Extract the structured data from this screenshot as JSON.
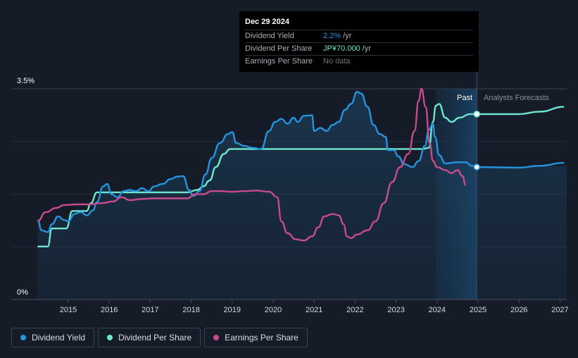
{
  "tooltip": {
    "date": "Dec 29 2024",
    "rows": [
      {
        "label": "Dividend Yield",
        "value": "2.2%",
        "unit": " /yr"
      },
      {
        "label": "Dividend Per Share",
        "value": "JP¥70.000",
        "unit": " /yr"
      },
      {
        "label": "Earnings Per Share",
        "value": "No data",
        "unit": ""
      }
    ]
  },
  "labels": {
    "past": "Past",
    "forecast": "Analysts Forecasts"
  },
  "legend": [
    {
      "label": "Dividend Yield",
      "color": "#2394df"
    },
    {
      "label": "Dividend Per Share",
      "color": "#6ee7cf"
    },
    {
      "label": "Earnings Per Share",
      "color": "#c84b8e"
    }
  ],
  "chart_data": {
    "type": "line",
    "title": "",
    "xlabel": "",
    "ylabel": "",
    "ylim": [
      0,
      3.5
    ],
    "xlim": [
      2014.3,
      2027.05
    ],
    "y_tick_labels": [
      {
        "v": 3.5,
        "label": "3.5%"
      },
      {
        "v": 0,
        "label": "0%"
      }
    ],
    "x_ticks": [
      2015,
      2016,
      2017,
      2018,
      2019,
      2020,
      2021,
      2022,
      2023,
      2024,
      2025,
      2026,
      2027
    ],
    "past_end": 2024.97,
    "forecast_shade_start": 2023.97,
    "series": [
      {
        "name": "Dividend Yield",
        "color": "#2394df",
        "points": [
          [
            2014.25,
            1.32
          ],
          [
            2014.35,
            1.15
          ],
          [
            2014.5,
            1.12
          ],
          [
            2014.6,
            1.25
          ],
          [
            2014.75,
            1.38
          ],
          [
            2014.9,
            1.32
          ],
          [
            2015.0,
            1.3
          ],
          [
            2015.15,
            1.42
          ],
          [
            2015.3,
            1.45
          ],
          [
            2015.45,
            1.4
          ],
          [
            2015.6,
            1.48
          ],
          [
            2015.7,
            1.62
          ],
          [
            2015.85,
            1.88
          ],
          [
            2015.95,
            1.92
          ],
          [
            2016.05,
            1.75
          ],
          [
            2016.2,
            1.7
          ],
          [
            2016.35,
            1.8
          ],
          [
            2016.5,
            1.82
          ],
          [
            2016.65,
            1.8
          ],
          [
            2016.8,
            1.85
          ],
          [
            2016.95,
            1.8
          ],
          [
            2017.1,
            1.88
          ],
          [
            2017.3,
            1.92
          ],
          [
            2017.5,
            2.0
          ],
          [
            2017.65,
            2.04
          ],
          [
            2017.8,
            2.05
          ],
          [
            2017.95,
            1.82
          ],
          [
            2018.05,
            1.72
          ],
          [
            2018.2,
            1.8
          ],
          [
            2018.35,
            2.08
          ],
          [
            2018.5,
            2.35
          ],
          [
            2018.7,
            2.6
          ],
          [
            2018.9,
            2.75
          ],
          [
            2019.0,
            2.78
          ],
          [
            2019.1,
            2.6
          ],
          [
            2019.3,
            2.55
          ],
          [
            2019.5,
            2.52
          ],
          [
            2019.7,
            2.5
          ],
          [
            2019.9,
            2.8
          ],
          [
            2020.05,
            2.95
          ],
          [
            2020.2,
            3.0
          ],
          [
            2020.35,
            2.92
          ],
          [
            2020.5,
            3.02
          ],
          [
            2020.6,
            2.95
          ],
          [
            2020.75,
            3.05
          ],
          [
            2020.95,
            3.06
          ],
          [
            2021.0,
            2.8
          ],
          [
            2021.15,
            2.85
          ],
          [
            2021.3,
            2.8
          ],
          [
            2021.45,
            2.9
          ],
          [
            2021.6,
            2.95
          ],
          [
            2021.75,
            3.15
          ],
          [
            2021.9,
            3.25
          ],
          [
            2022.05,
            3.45
          ],
          [
            2022.15,
            3.42
          ],
          [
            2022.3,
            3.2
          ],
          [
            2022.45,
            2.9
          ],
          [
            2022.6,
            2.75
          ],
          [
            2022.75,
            2.7
          ],
          [
            2022.8,
            2.48
          ],
          [
            2022.95,
            2.48
          ],
          [
            2023.05,
            2.38
          ],
          [
            2023.2,
            2.25
          ],
          [
            2023.4,
            2.2
          ],
          [
            2023.55,
            2.3
          ],
          [
            2023.7,
            2.55
          ],
          [
            2023.8,
            2.82
          ],
          [
            2023.9,
            2.92
          ],
          [
            2023.95,
            2.7
          ],
          [
            2024.05,
            2.4
          ],
          [
            2024.2,
            2.26
          ],
          [
            2024.5,
            2.28
          ],
          [
            2024.7,
            2.28
          ],
          [
            2024.85,
            2.22
          ],
          [
            2024.97,
            2.2
          ],
          [
            2026.0,
            2.19
          ],
          [
            2026.5,
            2.22
          ],
          [
            2027.1,
            2.27
          ]
        ]
      },
      {
        "name": "Dividend Per Share",
        "color": "#6ee7cf",
        "points": [
          [
            2014.25,
            0.88
          ],
          [
            2014.5,
            0.88
          ],
          [
            2014.6,
            1.18
          ],
          [
            2014.95,
            1.18
          ],
          [
            2015.1,
            1.47
          ],
          [
            2015.45,
            1.47
          ],
          [
            2015.55,
            1.6
          ],
          [
            2015.7,
            1.78
          ],
          [
            2016.7,
            1.78
          ],
          [
            2017.9,
            1.78
          ],
          [
            2018.15,
            1.82
          ],
          [
            2018.3,
            1.88
          ],
          [
            2018.45,
            1.98
          ],
          [
            2018.6,
            2.2
          ],
          [
            2018.8,
            2.42
          ],
          [
            2018.95,
            2.5
          ],
          [
            2023.65,
            2.5
          ],
          [
            2023.8,
            2.52
          ],
          [
            2023.9,
            2.95
          ],
          [
            2023.97,
            3.22
          ],
          [
            2024.05,
            3.25
          ],
          [
            2024.2,
            3.02
          ],
          [
            2024.35,
            2.95
          ],
          [
            2024.55,
            3.02
          ],
          [
            2024.8,
            3.08
          ],
          [
            2024.97,
            3.08
          ],
          [
            2026.0,
            3.08
          ],
          [
            2026.5,
            3.12
          ],
          [
            2027.1,
            3.2
          ]
        ]
      },
      {
        "name": "Earnings Per Share",
        "color": "#c84b8e",
        "points": [
          [
            2014.25,
            1.3
          ],
          [
            2014.45,
            1.45
          ],
          [
            2014.7,
            1.52
          ],
          [
            2014.9,
            1.57
          ],
          [
            2015.2,
            1.58
          ],
          [
            2015.5,
            1.58
          ],
          [
            2015.8,
            1.6
          ],
          [
            2016.1,
            1.63
          ],
          [
            2016.3,
            1.7
          ],
          [
            2016.5,
            1.65
          ],
          [
            2016.8,
            1.67
          ],
          [
            2017.1,
            1.68
          ],
          [
            2017.5,
            1.68
          ],
          [
            2017.9,
            1.68
          ],
          [
            2018.1,
            1.75
          ],
          [
            2018.3,
            1.75
          ],
          [
            2018.5,
            1.8
          ],
          [
            2018.7,
            1.8
          ],
          [
            2019.0,
            1.79
          ],
          [
            2019.3,
            1.8
          ],
          [
            2019.6,
            1.81
          ],
          [
            2019.9,
            1.79
          ],
          [
            2020.1,
            1.7
          ],
          [
            2020.2,
            1.3
          ],
          [
            2020.35,
            1.1
          ],
          [
            2020.55,
            1.0
          ],
          [
            2020.75,
            0.98
          ],
          [
            2020.95,
            1.05
          ],
          [
            2021.1,
            1.2
          ],
          [
            2021.25,
            1.38
          ],
          [
            2021.45,
            1.42
          ],
          [
            2021.6,
            1.4
          ],
          [
            2021.72,
            1.25
          ],
          [
            2021.8,
            1.05
          ],
          [
            2021.9,
            1.02
          ],
          [
            2022.05,
            1.08
          ],
          [
            2022.3,
            1.15
          ],
          [
            2022.5,
            1.3
          ],
          [
            2022.7,
            1.6
          ],
          [
            2022.9,
            1.95
          ],
          [
            2023.1,
            2.2
          ],
          [
            2023.3,
            2.42
          ],
          [
            2023.45,
            2.8
          ],
          [
            2023.55,
            3.3
          ],
          [
            2023.62,
            3.5
          ],
          [
            2023.72,
            3.2
          ],
          [
            2023.82,
            2.6
          ],
          [
            2023.9,
            2.3
          ],
          [
            2024.0,
            2.2
          ],
          [
            2024.2,
            2.15
          ],
          [
            2024.35,
            2.1
          ],
          [
            2024.5,
            2.15
          ],
          [
            2024.62,
            2.05
          ],
          [
            2024.7,
            1.9
          ]
        ]
      }
    ],
    "markers": [
      {
        "series": "Dividend Per Share",
        "x": 2024.97,
        "y": 3.08
      },
      {
        "series": "Dividend Yield",
        "x": 2024.97,
        "y": 2.2
      }
    ]
  }
}
